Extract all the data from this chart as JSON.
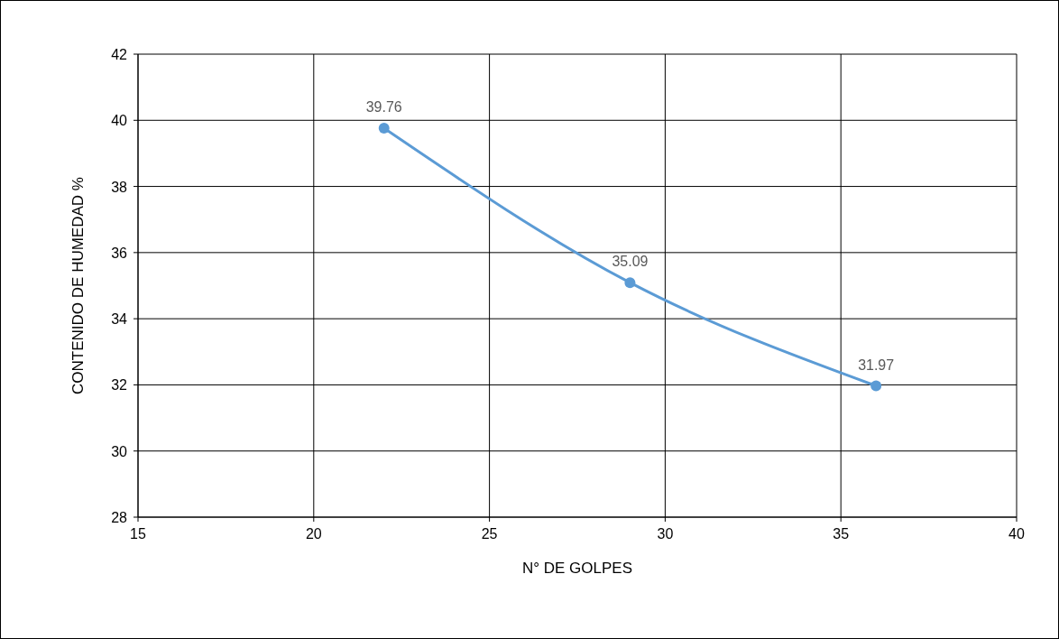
{
  "chart_data": {
    "type": "line",
    "xlabel": "N° DE GOLPES",
    "ylabel": "CONTENIDO DE HUMEDAD %",
    "x": [
      22,
      29,
      36
    ],
    "series": [
      {
        "color": "#5b9bd5",
        "values": [
          39.76,
          35.09,
          31.97
        ]
      }
    ],
    "xlim": [
      15,
      40
    ],
    "xticks": [
      15,
      20,
      25,
      30,
      35,
      40
    ],
    "ylim": [
      28,
      42
    ],
    "yticks": [
      28,
      30,
      32,
      34,
      36,
      38,
      40,
      42
    ],
    "grid": true,
    "marker": "circle",
    "line_style": "solid",
    "data_labels": true
  }
}
